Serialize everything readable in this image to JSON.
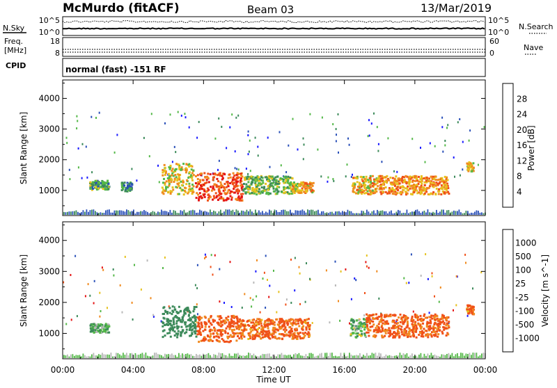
{
  "header": {
    "station": "McMurdo (fitACF)",
    "beam": "Beam 03",
    "date": "13/Mar/2019"
  },
  "strip_labels": {
    "nsky": "N.Sky",
    "nsearch": "N.Search",
    "freq_line1": "Freq.",
    "freq_line2": "[MHz]",
    "nave": "Nave",
    "cpid": "CPID",
    "cpid_text": "normal (fast) -151 RF",
    "noise_top": "10^5",
    "noise_bottom": "10^0",
    "freq_top": "18",
    "freq_bottom": "8",
    "nave_top": "60",
    "nave_bottom": "0"
  },
  "colors": {
    "power": [
      "#1a1aff",
      "#2a50b8",
      "#3c8a5a",
      "#54b848",
      "#e6c21e",
      "#f08a1e",
      "#f05018",
      "#e41414"
    ],
    "velocity": [
      "#e41414",
      "#f05018",
      "#f08a1e",
      "#e6c21e",
      "#b8b8b8",
      "#54b848",
      "#3c8a5a",
      "#2a50b8",
      "#1a1aff"
    ]
  },
  "chart_data": [
    {
      "type": "heatmap",
      "parameter": "power",
      "ylabel": "Slant Range [km]",
      "ylim": [
        180,
        4600
      ],
      "yticks": [
        1000,
        2000,
        3000,
        4000
      ],
      "xlim": [
        0,
        24
      ],
      "colorbar_label": "Power [dB]",
      "colorbar_ticks": [
        4,
        8,
        12,
        16,
        20,
        24,
        28
      ],
      "colorbar_range": [
        0,
        32
      ],
      "regions": [
        {
          "t0": 1.5,
          "t1": 2.6,
          "r0": 1050,
          "r1": 1350,
          "level": 12
        },
        {
          "t0": 3.3,
          "t1": 3.9,
          "r0": 1000,
          "r1": 1300,
          "level": 10
        },
        {
          "t0": 5.6,
          "t1": 7.4,
          "r0": 900,
          "r1": 1900,
          "level": 18
        },
        {
          "t0": 7.5,
          "t1": 10.2,
          "r0": 700,
          "r1": 1600,
          "level": 26
        },
        {
          "t0": 10.2,
          "t1": 13.0,
          "r0": 900,
          "r1": 1500,
          "level": 14
        },
        {
          "t0": 13.0,
          "t1": 14.2,
          "r0": 950,
          "r1": 1300,
          "level": 20
        },
        {
          "t0": 16.4,
          "t1": 17.8,
          "r0": 900,
          "r1": 1500,
          "level": 20
        },
        {
          "t0": 17.8,
          "t1": 21.9,
          "r0": 900,
          "r1": 1500,
          "level": 22
        },
        {
          "t0": 22.9,
          "t1": 23.3,
          "r0": 1650,
          "r1": 1950,
          "level": 18
        }
      ]
    },
    {
      "type": "heatmap",
      "parameter": "velocity",
      "xlabel": "Time UT",
      "ylabel": "Slant Range [km]",
      "ylim": [
        180,
        4600
      ],
      "yticks": [
        1000,
        2000,
        3000,
        4000
      ],
      "xlim": [
        0,
        24
      ],
      "xticks": [
        "00:00",
        "04:00",
        "08:00",
        "12:00",
        "16:00",
        "20:00",
        "00:00"
      ],
      "colorbar_label": "Velocity [m s^-1]",
      "colorbar_ticks": [
        "1000",
        "500",
        "100",
        "25",
        "-25",
        "-100",
        "-500",
        "-1000"
      ],
      "regions": [
        {
          "t0": 1.5,
          "t1": 2.6,
          "r0": 1050,
          "r1": 1350,
          "vel": 100
        },
        {
          "t0": 5.6,
          "t1": 7.6,
          "r0": 900,
          "r1": 1900,
          "vel": 300
        },
        {
          "t0": 7.6,
          "t1": 10.0,
          "r0": 750,
          "r1": 1600,
          "vel": -150
        },
        {
          "t0": 10.0,
          "t1": 14.0,
          "r0": 850,
          "r1": 1500,
          "vel": -120
        },
        {
          "t0": 16.3,
          "t1": 17.2,
          "r0": 900,
          "r1": 1500,
          "vel": 80
        },
        {
          "t0": 17.2,
          "t1": 21.9,
          "r0": 900,
          "r1": 1650,
          "vel": -130
        },
        {
          "t0": 22.9,
          "t1": 23.3,
          "r0": 1650,
          "r1": 1950,
          "vel": -100
        }
      ]
    }
  ]
}
